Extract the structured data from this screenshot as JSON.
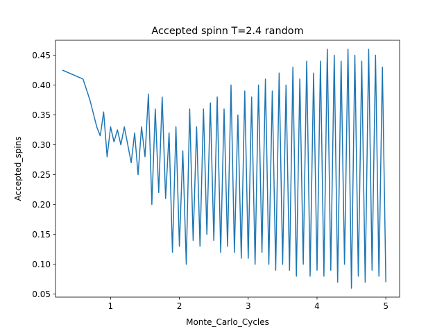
{
  "chart_data": {
    "type": "line",
    "title": "Accepted spinn T=2.4 random",
    "xlabel": "Monte_Carlo_Cycles",
    "ylabel": "Accepted_spins",
    "xlim": [
      0.2,
      5.2
    ],
    "ylim": [
      0.045,
      0.475
    ],
    "xticks": [
      1,
      2,
      3,
      4,
      5
    ],
    "xtick_labels": [
      "1",
      "2",
      "3",
      "4",
      "5"
    ],
    "yticks": [
      0.05,
      0.1,
      0.15,
      0.2,
      0.25,
      0.3,
      0.35,
      0.4,
      0.45
    ],
    "ytick_labels": [
      "0.05",
      "0.10",
      "0.15",
      "0.20",
      "0.25",
      "0.30",
      "0.35",
      "0.40",
      "0.45"
    ],
    "grid": false,
    "series": [
      {
        "color": "#1f77b4",
        "x": [
          0.3,
          0.5,
          0.6,
          0.7,
          0.8,
          0.85,
          0.9,
          0.95,
          1.0,
          1.05,
          1.1,
          1.15,
          1.2,
          1.25,
          1.3,
          1.35,
          1.4,
          1.45,
          1.5,
          1.55,
          1.6,
          1.65,
          1.7,
          1.75,
          1.8,
          1.85,
          1.9,
          1.95,
          2.0,
          2.05,
          2.1,
          2.15,
          2.2,
          2.25,
          2.3,
          2.35,
          2.4,
          2.45,
          2.5,
          2.55,
          2.6,
          2.65,
          2.7,
          2.75,
          2.8,
          2.85,
          2.9,
          2.95,
          3.0,
          3.05,
          3.1,
          3.15,
          3.2,
          3.25,
          3.3,
          3.35,
          3.4,
          3.45,
          3.5,
          3.55,
          3.6,
          3.65,
          3.7,
          3.75,
          3.8,
          3.85,
          3.9,
          3.95,
          4.0,
          4.05,
          4.1,
          4.15,
          4.2,
          4.25,
          4.3,
          4.35,
          4.4,
          4.45,
          4.5,
          4.55,
          4.6,
          4.65,
          4.7,
          4.75,
          4.8,
          4.85,
          4.9,
          4.95,
          5.0
        ],
        "y": [
          0.425,
          0.415,
          0.41,
          0.375,
          0.33,
          0.315,
          0.355,
          0.28,
          0.33,
          0.305,
          0.325,
          0.3,
          0.33,
          0.3,
          0.27,
          0.32,
          0.25,
          0.33,
          0.28,
          0.385,
          0.2,
          0.36,
          0.22,
          0.38,
          0.21,
          0.32,
          0.12,
          0.33,
          0.13,
          0.29,
          0.1,
          0.36,
          0.14,
          0.33,
          0.13,
          0.36,
          0.15,
          0.37,
          0.14,
          0.38,
          0.12,
          0.36,
          0.13,
          0.4,
          0.12,
          0.35,
          0.11,
          0.39,
          0.11,
          0.38,
          0.1,
          0.4,
          0.12,
          0.41,
          0.1,
          0.39,
          0.09,
          0.42,
          0.1,
          0.4,
          0.09,
          0.43,
          0.08,
          0.41,
          0.1,
          0.44,
          0.08,
          0.42,
          0.09,
          0.44,
          0.08,
          0.46,
          0.09,
          0.45,
          0.07,
          0.44,
          0.1,
          0.46,
          0.06,
          0.45,
          0.08,
          0.44,
          0.07,
          0.46,
          0.09,
          0.45,
          0.08,
          0.43,
          0.07
        ]
      }
    ]
  }
}
